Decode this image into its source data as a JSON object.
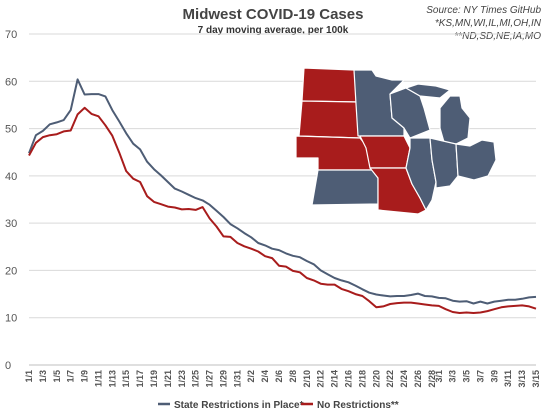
{
  "chart_data": {
    "type": "line",
    "title": "Midwest COVID-19 Cases",
    "subtitle": "7 day moving average, per 100k",
    "source_lines": [
      "Source: NY Times GitHub",
      "*KS,MN,WI,IL,MI,OH,IN",
      "**ND,SD,NE,IA,MO"
    ],
    "ylim": [
      0,
      70
    ],
    "yticks": [
      0,
      10,
      20,
      30,
      40,
      50,
      60,
      70
    ],
    "x": [
      "1/1",
      "1/2",
      "1/3",
      "1/4",
      "1/5",
      "1/6",
      "1/7",
      "1/8",
      "1/9",
      "1/10",
      "1/11",
      "1/12",
      "1/13",
      "1/14",
      "1/15",
      "1/16",
      "1/17",
      "1/18",
      "1/19",
      "1/20",
      "1/21",
      "1/22",
      "1/23",
      "1/24",
      "1/25",
      "1/26",
      "1/27",
      "1/28",
      "1/29",
      "1/30",
      "1/31",
      "2/1",
      "2/2",
      "2/3",
      "2/4",
      "2/5",
      "2/6",
      "2/7",
      "2/8",
      "2/9",
      "2/10",
      "2/11",
      "2/12",
      "2/13",
      "2/14",
      "2/15",
      "2/16",
      "2/17",
      "2/18",
      "2/19",
      "2/20",
      "2/21",
      "2/22",
      "2/23",
      "2/24",
      "2/25",
      "2/26",
      "2/27",
      "2/28",
      "3/1",
      "3/2",
      "3/3",
      "3/4",
      "3/5",
      "3/6",
      "3/7",
      "3/8",
      "3/9",
      "3/10",
      "3/11",
      "3/12",
      "3/13",
      "3/14",
      "3/15"
    ],
    "xtick_labels": [
      "1/1",
      "1/3",
      "1/5",
      "1/7",
      "1/9",
      "1/11",
      "1/13",
      "1/15",
      "1/17",
      "1/19",
      "1/21",
      "1/23",
      "1/25",
      "1/27",
      "1/29",
      "1/31",
      "2/2",
      "2/4",
      "2/6",
      "2/8",
      "2/10",
      "2/12",
      "2/14",
      "2/16",
      "2/18",
      "2/20",
      "2/22",
      "2/24",
      "2/26",
      "2/28",
      "3/1",
      "3/3",
      "3/5",
      "3/7",
      "3/9",
      "3/11",
      "3/13",
      "3/15"
    ],
    "series": [
      {
        "name": "State Restrictions in Place*",
        "color": "#4e5d75",
        "values": [
          44.8,
          48.6,
          49.5,
          50.9,
          51.3,
          51.8,
          53.9,
          60.4,
          57.2,
          57.3,
          57.3,
          56.8,
          53.9,
          51.5,
          49.0,
          46.8,
          45.6,
          43.0,
          41.4,
          40.1,
          38.7,
          37.3,
          36.7,
          36.0,
          35.3,
          34.8,
          33.9,
          32.6,
          31.3,
          29.8,
          28.9,
          27.9,
          27.0,
          25.8,
          25.3,
          24.6,
          24.3,
          23.6,
          23.1,
          22.8,
          22.0,
          21.3,
          20.0,
          19.2,
          18.4,
          17.9,
          17.5,
          16.8,
          16.0,
          15.3,
          14.9,
          14.7,
          14.5,
          14.6,
          14.6,
          14.8,
          15.1,
          14.6,
          14.5,
          14.2,
          14.1,
          13.6,
          13.4,
          13.5,
          13.0,
          13.4,
          13.0,
          13.4,
          13.6,
          13.8,
          13.8,
          14.0,
          14.3,
          14.4
        ]
      },
      {
        "name": "No Restrictions**",
        "color": "#a81c1c",
        "values": [
          44.3,
          47.0,
          48.2,
          48.6,
          48.8,
          49.4,
          49.6,
          53.0,
          54.4,
          53.1,
          52.6,
          50.7,
          48.5,
          44.9,
          41.0,
          39.4,
          38.7,
          35.7,
          34.5,
          34.0,
          33.5,
          33.3,
          32.9,
          33.0,
          32.8,
          33.4,
          31.0,
          29.3,
          27.2,
          27.1,
          25.8,
          25.1,
          24.6,
          24.0,
          23.0,
          22.6,
          21.0,
          20.8,
          19.9,
          19.6,
          18.4,
          17.9,
          17.2,
          17.0,
          17.0,
          16.1,
          15.6,
          15.0,
          14.6,
          13.5,
          12.2,
          12.4,
          12.9,
          13.1,
          13.2,
          13.2,
          13.0,
          12.8,
          12.6,
          12.5,
          11.8,
          11.2,
          11.0,
          11.1,
          11.0,
          11.1,
          11.4,
          11.8,
          12.2,
          12.4,
          12.5,
          12.6,
          12.4,
          11.9
        ]
      }
    ],
    "legend_position": "bottom",
    "grid": true,
    "map": {
      "legend_colors": {
        "restrictions": "#4e5d75",
        "no_restrictions": "#a81c1c"
      }
    }
  }
}
